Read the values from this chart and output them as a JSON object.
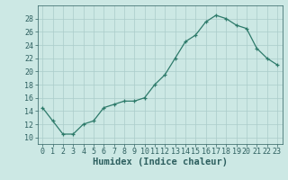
{
  "x": [
    0,
    1,
    2,
    3,
    4,
    5,
    6,
    7,
    8,
    9,
    10,
    11,
    12,
    13,
    14,
    15,
    16,
    17,
    18,
    19,
    20,
    21,
    22,
    23
  ],
  "y": [
    14.5,
    12.5,
    10.5,
    10.5,
    12.0,
    12.5,
    14.5,
    15.0,
    15.5,
    15.5,
    16.0,
    18.0,
    19.5,
    22.0,
    24.5,
    25.5,
    27.5,
    28.5,
    28.0,
    27.0,
    26.5,
    23.5,
    22.0,
    21.0
  ],
  "xlabel": "Humidex (Indice chaleur)",
  "line_color": "#2d7a6a",
  "marker_color": "#2d7a6a",
  "bg_color": "#cce8e4",
  "grid_color": "#aaccca",
  "axis_color": "#2d5f5f",
  "ylim": [
    9,
    30
  ],
  "xlim": [
    -0.5,
    23.5
  ],
  "yticks": [
    10,
    12,
    14,
    16,
    18,
    20,
    22,
    24,
    26,
    28
  ],
  "xticks": [
    0,
    1,
    2,
    3,
    4,
    5,
    6,
    7,
    8,
    9,
    10,
    11,
    12,
    13,
    14,
    15,
    16,
    17,
    18,
    19,
    20,
    21,
    22,
    23
  ],
  "xlabel_fontsize": 7.5,
  "tick_fontsize": 6.0,
  "linewidth": 0.9,
  "markersize": 3.5,
  "markeredgewidth": 0.9
}
